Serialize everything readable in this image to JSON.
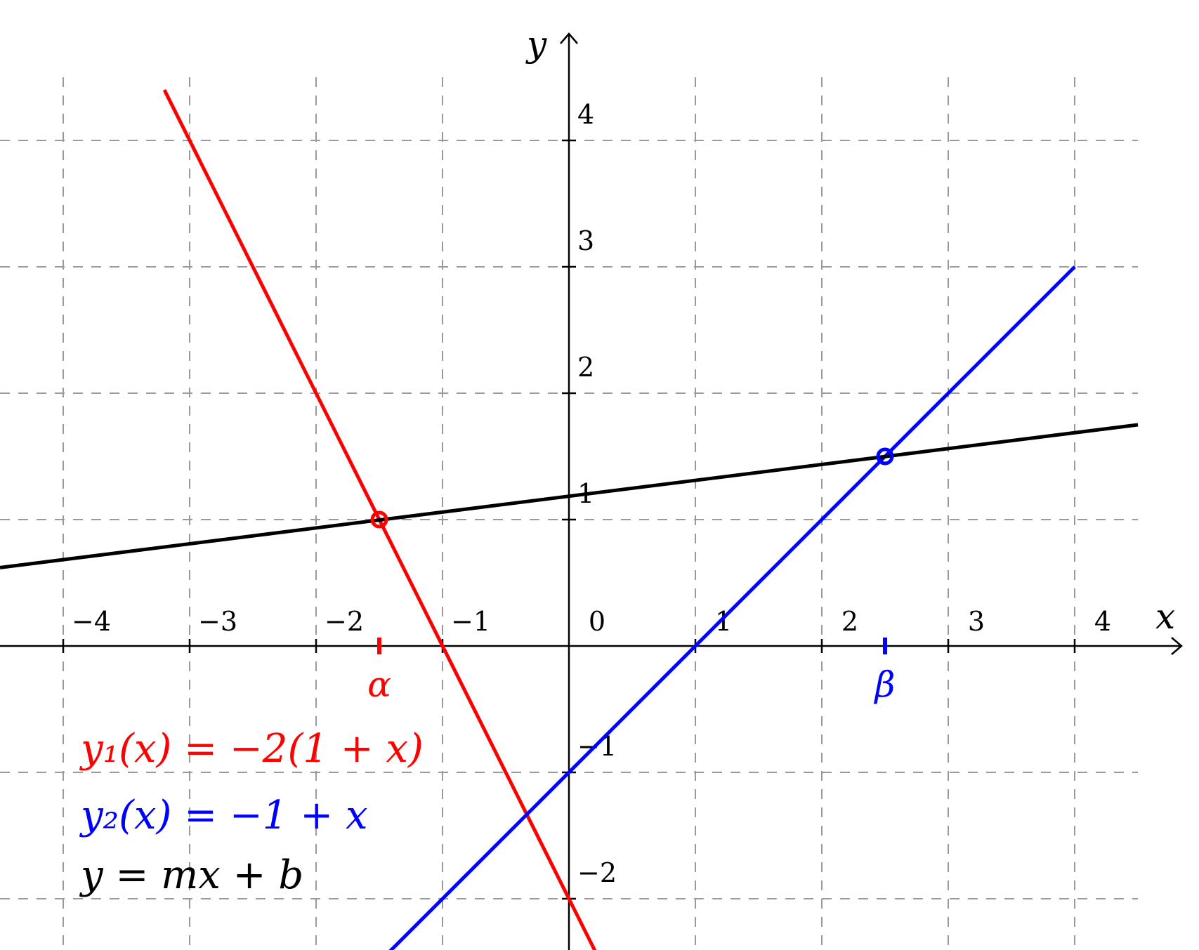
{
  "chart_data": {
    "type": "line",
    "title": "",
    "xlabel": "x",
    "ylabel": "y",
    "xlim": [
      -4.5,
      4.5
    ],
    "ylim": [
      -2.5,
      4.5
    ],
    "grid": true,
    "x_ticks": [
      -4,
      -3,
      -2,
      -1,
      0,
      1,
      2,
      3,
      4
    ],
    "y_ticks": [
      -2,
      -1,
      1,
      2,
      3,
      4
    ],
    "x_tick_labels": [
      "−4",
      "−3",
      "−2",
      "−1",
      "0",
      "1",
      "2",
      "3",
      "4"
    ],
    "y_tick_labels": [
      "−2",
      "−1",
      "1",
      "2",
      "3",
      "4"
    ],
    "series": [
      {
        "name": "y₁(x) = −2(1 + x)",
        "color": "#ff0000",
        "x": [
          -3.2,
          0.25
        ],
        "y": [
          4.4,
          -2.5
        ]
      },
      {
        "name": "y₂(x) = −1 + x",
        "color": "#0000ff",
        "x": [
          -1.5,
          4.0
        ],
        "y": [
          -2.5,
          3.0
        ]
      },
      {
        "name": "y = mx + b",
        "color": "#000000",
        "x": [
          -4.5,
          4.5
        ],
        "y": [
          0.62,
          1.75
        ]
      }
    ],
    "points": [
      {
        "label": "α",
        "x": -1.5,
        "y": 1.0,
        "color": "#ff0000"
      },
      {
        "label": "β",
        "x": 2.5,
        "y": 1.5,
        "color": "#0000ff"
      }
    ],
    "legend": [
      {
        "text": "y₁(x) = −2(1 + x)",
        "color": "#ff0000"
      },
      {
        "text": "y₂(x) = −1 + x",
        "color": "#0000ff"
      },
      {
        "text": "y = mx + b",
        "color": "#000000"
      }
    ],
    "legend_position": "lower-left"
  }
}
